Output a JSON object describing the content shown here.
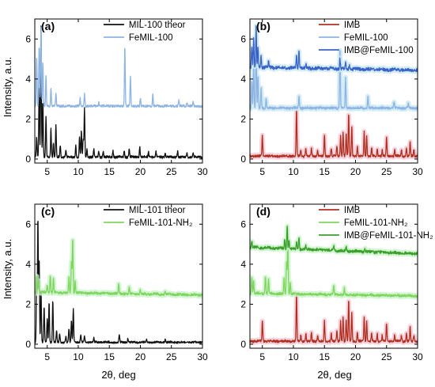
{
  "x_axis_label": "2θ, deg",
  "y_axis_label": "Intensity, a.u.",
  "colors": {
    "theor": "#111111",
    "femil100": "#8db4e2",
    "imb_femil100": "#3a63c8",
    "imb": "#b03020",
    "femil101": "#7ed65c",
    "imb_femil101": "#3aa02a",
    "halo_red": "#f4c7d4",
    "halo_blue": "#c9e7f3",
    "halo_green": "#c8f2c8"
  },
  "chart_data": [
    {
      "type": "line",
      "panel_label": "(a)",
      "xlim": [
        3,
        30
      ],
      "ylim": [
        -0.2,
        7
      ],
      "xticks": [
        5,
        10,
        15,
        20,
        25,
        30
      ],
      "yticks": [
        0,
        2,
        4,
        6
      ],
      "legend_position": "top-right",
      "series": [
        {
          "name": "MIL-100 theor",
          "color_key": "theor",
          "baseline": 0.1,
          "noise": 0.06,
          "peaks": [
            [
              3.3,
              1.0
            ],
            [
              3.7,
              3.6
            ],
            [
              4.0,
              6.5
            ],
            [
              4.3,
              2.8
            ],
            [
              4.8,
              2.0
            ],
            [
              5.6,
              1.4
            ],
            [
              6.0,
              0.7
            ],
            [
              6.4,
              1.6
            ],
            [
              7.1,
              0.6
            ],
            [
              8.0,
              0.3
            ],
            [
              9.6,
              0.6
            ],
            [
              10.2,
              1.0
            ],
            [
              10.5,
              1.3
            ],
            [
              10.8,
              0.9
            ],
            [
              11.0,
              2.4
            ],
            [
              11.4,
              0.4
            ],
            [
              12.5,
              0.4
            ],
            [
              13.3,
              0.3
            ],
            [
              14.0,
              0.3
            ],
            [
              15.6,
              0.3
            ],
            [
              17.4,
              0.3
            ],
            [
              18.2,
              0.4
            ],
            [
              19.9,
              0.5
            ],
            [
              21.3,
              0.3
            ],
            [
              22.5,
              0.3
            ],
            [
              24.0,
              0.2
            ],
            [
              26.0,
              0.3
            ],
            [
              27.5,
              0.2
            ],
            [
              28.5,
              0.2
            ]
          ]
        },
        {
          "name": "FeMIL-100",
          "color_key": "femil100",
          "baseline": 2.65,
          "noise": 0.06,
          "peaks": [
            [
              3.3,
              2.5
            ],
            [
              3.7,
              3.0
            ],
            [
              4.0,
              3.9
            ],
            [
              4.3,
              2.2
            ],
            [
              4.8,
              1.5
            ],
            [
              5.6,
              0.9
            ],
            [
              6.4,
              0.6
            ],
            [
              10.3,
              0.4
            ],
            [
              11.0,
              0.6
            ],
            [
              13.3,
              0.2
            ],
            [
              17.5,
              3.0
            ],
            [
              18.4,
              1.5
            ],
            [
              20.0,
              0.4
            ],
            [
              22.0,
              0.6
            ],
            [
              26.2,
              0.3
            ],
            [
              27.5,
              0.2
            ],
            [
              28.5,
              0.2
            ]
          ]
        }
      ]
    },
    {
      "type": "line",
      "panel_label": "(b)",
      "xlim": [
        3,
        30
      ],
      "ylim": [
        -0.2,
        7
      ],
      "xticks": [
        5,
        10,
        15,
        20,
        25,
        30
      ],
      "yticks": [
        0,
        2,
        4,
        6
      ],
      "legend_position": "top-right",
      "series": [
        {
          "name": "IMB",
          "color_key": "imb",
          "halo_key": "halo_red",
          "baseline": 0.15,
          "noise": 0.06,
          "peaks": [
            [
              5.0,
              1.0
            ],
            [
              10.5,
              2.4
            ],
            [
              11.2,
              0.3
            ],
            [
              12.0,
              0.4
            ],
            [
              12.9,
              0.4
            ],
            [
              13.9,
              0.3
            ],
            [
              15.0,
              1.0
            ],
            [
              16.1,
              0.4
            ],
            [
              17.0,
              0.5
            ],
            [
              17.6,
              1.0
            ],
            [
              18.0,
              1.2
            ],
            [
              18.5,
              1.1
            ],
            [
              18.9,
              2.1
            ],
            [
              19.4,
              1.5
            ],
            [
              20.3,
              0.5
            ],
            [
              21.4,
              1.2
            ],
            [
              21.8,
              1.0
            ],
            [
              22.6,
              0.4
            ],
            [
              23.5,
              0.4
            ],
            [
              24.3,
              0.3
            ],
            [
              25.0,
              0.9
            ],
            [
              26.3,
              0.3
            ],
            [
              27.4,
              0.3
            ],
            [
              28.2,
              0.4
            ],
            [
              28.8,
              0.7
            ],
            [
              29.4,
              0.3
            ]
          ]
        },
        {
          "name": "FeMIL-100",
          "color_key": "femil100",
          "halo_key": "halo_blue",
          "baseline": 2.55,
          "noise": 0.06,
          "peaks": [
            [
              3.3,
              1.4
            ],
            [
              3.6,
              2.2
            ],
            [
              4.0,
              3.5
            ],
            [
              4.3,
              1.6
            ],
            [
              4.8,
              1.0
            ],
            [
              5.6,
              0.5
            ],
            [
              10.9,
              0.6
            ],
            [
              17.5,
              3.0
            ],
            [
              18.4,
              1.5
            ],
            [
              22.0,
              0.6
            ],
            [
              26.2,
              0.3
            ],
            [
              28.5,
              0.2
            ]
          ]
        },
        {
          "name": "IMB@FeMIL-100",
          "color_key": "imb_femil100",
          "halo_key": "halo_blue",
          "baseline": 4.6,
          "noise": 0.08,
          "slope": -0.006,
          "peaks": [
            [
              3.3,
              1.0
            ],
            [
              3.6,
              1.4
            ],
            [
              4.0,
              2.0
            ],
            [
              4.3,
              1.0
            ],
            [
              4.8,
              0.6
            ],
            [
              6.0,
              0.3
            ],
            [
              10.5,
              0.6
            ],
            [
              10.9,
              0.9
            ],
            [
              12.0,
              0.2
            ],
            [
              17.5,
              0.5
            ],
            [
              18.4,
              0.3
            ],
            [
              19.0,
              0.2
            ]
          ]
        }
      ]
    },
    {
      "type": "line",
      "panel_label": "(c)",
      "xlim": [
        3,
        30
      ],
      "ylim": [
        -0.2,
        7
      ],
      "xticks": [
        5,
        10,
        15,
        20,
        25,
        30
      ],
      "yticks": [
        0,
        2,
        4,
        6
      ],
      "legend_position": "top-right",
      "series": [
        {
          "name": "MIL-101 theor",
          "color_key": "theor",
          "baseline": 0.1,
          "noise": 0.05,
          "peaks": [
            [
              3.3,
              3.0
            ],
            [
              3.5,
              6.3
            ],
            [
              3.7,
              4.2
            ],
            [
              4.0,
              2.6
            ],
            [
              4.5,
              1.8
            ],
            [
              5.0,
              1.2
            ],
            [
              5.3,
              2.0
            ],
            [
              5.9,
              2.1
            ],
            [
              6.5,
              0.6
            ],
            [
              7.0,
              0.4
            ],
            [
              8.0,
              0.3
            ],
            [
              8.5,
              0.7
            ],
            [
              8.9,
              1.1
            ],
            [
              9.2,
              1.7
            ],
            [
              10.4,
              0.4
            ],
            [
              11.0,
              0.3
            ],
            [
              12.5,
              0.2
            ],
            [
              16.6,
              0.4
            ],
            [
              18.0,
              0.2
            ],
            [
              21.0,
              0.15
            ],
            [
              24.0,
              0.15
            ]
          ]
        },
        {
          "name": "FeMIL-101-NH₂",
          "color_key": "femil101",
          "halo_key": "halo_green",
          "baseline": 2.6,
          "noise": 0.06,
          "slope": -0.005,
          "peaks": [
            [
              3.3,
              0.8
            ],
            [
              3.6,
              0.6
            ],
            [
              5.0,
              0.4
            ],
            [
              5.5,
              0.9
            ],
            [
              6.0,
              0.7
            ],
            [
              8.5,
              0.8
            ],
            [
              8.9,
              1.6
            ],
            [
              9.1,
              2.8
            ],
            [
              9.5,
              0.6
            ],
            [
              16.5,
              0.5
            ],
            [
              18.2,
              0.3
            ],
            [
              20.0,
              0.2
            ],
            [
              24.0,
              0.15
            ]
          ]
        }
      ]
    },
    {
      "type": "line",
      "panel_label": "(d)",
      "xlim": [
        3,
        30
      ],
      "ylim": [
        -0.2,
        7
      ],
      "xticks": [
        5,
        10,
        15,
        20,
        25,
        30
      ],
      "yticks": [
        0,
        2,
        4,
        6
      ],
      "legend_position": "top-right",
      "series": [
        {
          "name": "IMB",
          "color_key": "imb",
          "halo_key": "halo_red",
          "baseline": 0.15,
          "noise": 0.06,
          "peaks": [
            [
              5.0,
              1.0
            ],
            [
              10.5,
              2.4
            ],
            [
              11.2,
              0.3
            ],
            [
              12.0,
              0.4
            ],
            [
              12.9,
              0.4
            ],
            [
              13.9,
              0.3
            ],
            [
              15.0,
              1.0
            ],
            [
              16.1,
              0.4
            ],
            [
              17.0,
              0.5
            ],
            [
              17.6,
              1.0
            ],
            [
              18.0,
              1.2
            ],
            [
              18.5,
              1.1
            ],
            [
              18.9,
              2.1
            ],
            [
              19.4,
              1.5
            ],
            [
              20.3,
              0.5
            ],
            [
              21.4,
              1.2
            ],
            [
              21.8,
              1.0
            ],
            [
              22.6,
              0.4
            ],
            [
              23.5,
              0.4
            ],
            [
              24.3,
              0.3
            ],
            [
              25.0,
              0.9
            ],
            [
              26.3,
              0.3
            ],
            [
              27.4,
              0.3
            ],
            [
              28.2,
              0.4
            ],
            [
              28.8,
              0.7
            ],
            [
              29.4,
              0.3
            ]
          ]
        },
        {
          "name": "FeMIL-101-NH₂",
          "color_key": "femil101",
          "halo_key": "halo_green",
          "baseline": 2.55,
          "noise": 0.06,
          "slope": -0.005,
          "peaks": [
            [
              3.3,
              0.8
            ],
            [
              3.6,
              0.6
            ],
            [
              5.5,
              0.9
            ],
            [
              6.0,
              0.7
            ],
            [
              8.5,
              0.8
            ],
            [
              8.9,
              1.6
            ],
            [
              9.1,
              2.8
            ],
            [
              9.5,
              0.6
            ],
            [
              16.5,
              0.5
            ],
            [
              18.2,
              0.3
            ]
          ]
        },
        {
          "name": "IMB@FeMIL-101-NH₂",
          "color_key": "imb_femil101",
          "halo_key": "halo_green",
          "baseline": 4.85,
          "noise": 0.07,
          "slope": -0.012,
          "peaks": [
            [
              3.3,
              0.3
            ],
            [
              8.6,
              0.5
            ],
            [
              9.0,
              1.2
            ],
            [
              9.3,
              0.4
            ],
            [
              10.5,
              0.4
            ],
            [
              10.9,
              0.6
            ],
            [
              12.0,
              0.15
            ],
            [
              16.5,
              0.2
            ],
            [
              18.5,
              0.2
            ],
            [
              21.5,
              0.15
            ]
          ]
        }
      ]
    }
  ]
}
